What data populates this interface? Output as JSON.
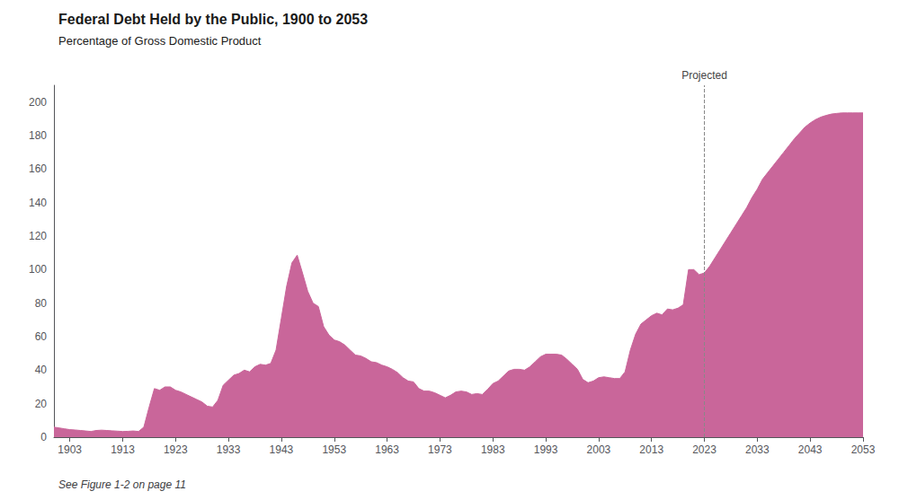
{
  "chart_data": {
    "type": "area",
    "title": "Federal Debt Held by the Public, 1900 to 2053",
    "subtitle": "Percentage of Gross Domestic Product",
    "footnote": "See Figure 1-2 on page 11",
    "color": "#c9669a",
    "grid": false,
    "annotations": [
      {
        "x": 2023,
        "text": "Projected",
        "line_style": "dashed"
      }
    ],
    "xlim": [
      1900,
      2053
    ],
    "xticks": [
      1903,
      1913,
      1923,
      1933,
      1943,
      1953,
      1963,
      1973,
      1983,
      1993,
      2003,
      2013,
      2023,
      2033,
      2043,
      2053
    ],
    "ylim": [
      0,
      210
    ],
    "yticks": [
      0,
      20,
      40,
      60,
      80,
      100,
      120,
      140,
      160,
      180,
      200
    ],
    "x": [
      1900,
      1901,
      1902,
      1903,
      1904,
      1905,
      1906,
      1907,
      1908,
      1909,
      1910,
      1911,
      1912,
      1913,
      1914,
      1915,
      1916,
      1917,
      1918,
      1919,
      1920,
      1921,
      1922,
      1923,
      1924,
      1925,
      1926,
      1927,
      1928,
      1929,
      1930,
      1931,
      1932,
      1933,
      1934,
      1935,
      1936,
      1937,
      1938,
      1939,
      1940,
      1941,
      1942,
      1943,
      1944,
      1945,
      1946,
      1947,
      1948,
      1949,
      1950,
      1951,
      1952,
      1953,
      1954,
      1955,
      1956,
      1957,
      1958,
      1959,
      1960,
      1961,
      1962,
      1963,
      1964,
      1965,
      1966,
      1967,
      1968,
      1969,
      1970,
      1971,
      1972,
      1973,
      1974,
      1975,
      1976,
      1977,
      1978,
      1979,
      1980,
      1981,
      1982,
      1983,
      1984,
      1985,
      1986,
      1987,
      1988,
      1989,
      1990,
      1991,
      1992,
      1993,
      1994,
      1995,
      1996,
      1997,
      1998,
      1999,
      2000,
      2001,
      2002,
      2003,
      2004,
      2005,
      2006,
      2007,
      2008,
      2009,
      2010,
      2011,
      2012,
      2013,
      2014,
      2015,
      2016,
      2017,
      2018,
      2019,
      2020,
      2021,
      2022,
      2023,
      2024,
      2025,
      2026,
      2027,
      2028,
      2029,
      2030,
      2031,
      2032,
      2033,
      2034,
      2035,
      2036,
      2037,
      2038,
      2039,
      2040,
      2041,
      2042,
      2043,
      2044,
      2045,
      2046,
      2047,
      2048,
      2049,
      2050,
      2051,
      2052,
      2053
    ],
    "values": [
      6,
      5.5,
      5,
      4.5,
      4.3,
      4.0,
      3.7,
      3.4,
      4.0,
      4.2,
      4.0,
      3.8,
      3.6,
      3.4,
      3.5,
      3.7,
      3.4,
      6.0,
      18.0,
      29.0,
      28.0,
      30.0,
      30.0,
      28.0,
      27.0,
      25.5,
      24.0,
      22.5,
      21.0,
      18.5,
      18.0,
      22.0,
      31.0,
      34.0,
      37.0,
      38.0,
      40.0,
      39.0,
      42.0,
      43.5,
      43.0,
      44.0,
      52.0,
      71.0,
      90.0,
      104.0,
      108.6,
      98.0,
      87.0,
      80.0,
      78.0,
      66.0,
      61.0,
      58.0,
      57.0,
      55.0,
      52.0,
      49.0,
      48.5,
      47.0,
      45.0,
      44.5,
      43.0,
      42.0,
      40.5,
      38.5,
      35.5,
      33.5,
      33.0,
      29.0,
      27.5,
      27.5,
      26.5,
      25.0,
      23.5,
      25.0,
      27.0,
      27.5,
      27.0,
      25.5,
      26.0,
      25.5,
      28.5,
      32.0,
      33.5,
      36.5,
      39.5,
      40.5,
      40.5,
      40.0,
      42.0,
      45.0,
      48.0,
      49.5,
      49.5,
      49.5,
      49.0,
      46.5,
      43.5,
      40.5,
      34.5,
      32.5,
      33.5,
      35.5,
      36.0,
      35.5,
      35.0,
      35.0,
      39.0,
      52.0,
      61.5,
      67.5,
      70.0,
      72.5,
      74.0,
      73.0,
      76.5,
      76.0,
      77.0,
      79.0,
      100.0,
      100.0,
      97.0,
      98.0,
      102.0,
      107.0,
      112.0,
      117.0,
      122.0,
      127.0,
      132.0,
      137.0,
      143.0,
      148.0,
      154.0,
      158.0,
      162.0,
      166.0,
      170.0,
      174.0,
      178.0,
      181.5,
      185.0,
      187.5,
      189.5,
      191.0,
      192.0,
      192.8,
      193.2,
      193.5,
      193.5,
      193.5,
      193.5,
      193.5
    ]
  }
}
